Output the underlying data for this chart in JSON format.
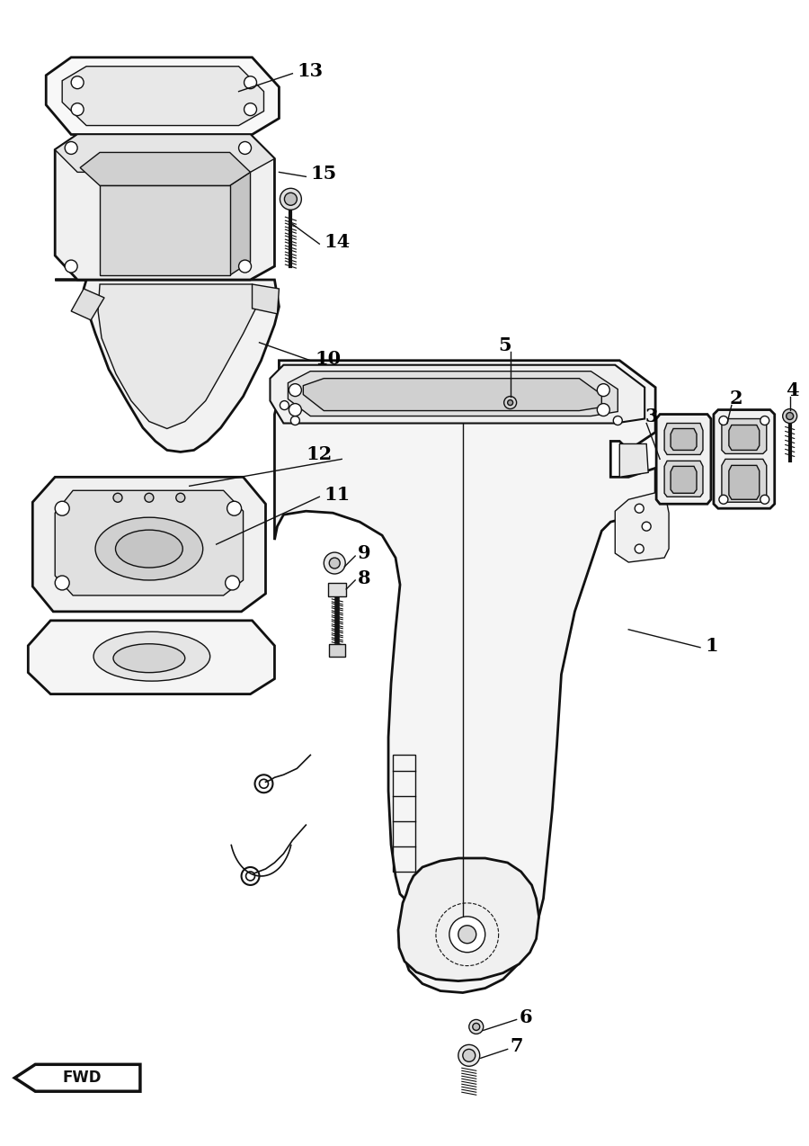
{
  "background_color": "#ffffff",
  "line_color": "#111111",
  "label_color": "#000000",
  "fig_width": 9.0,
  "fig_height": 12.74,
  "dpi": 100
}
